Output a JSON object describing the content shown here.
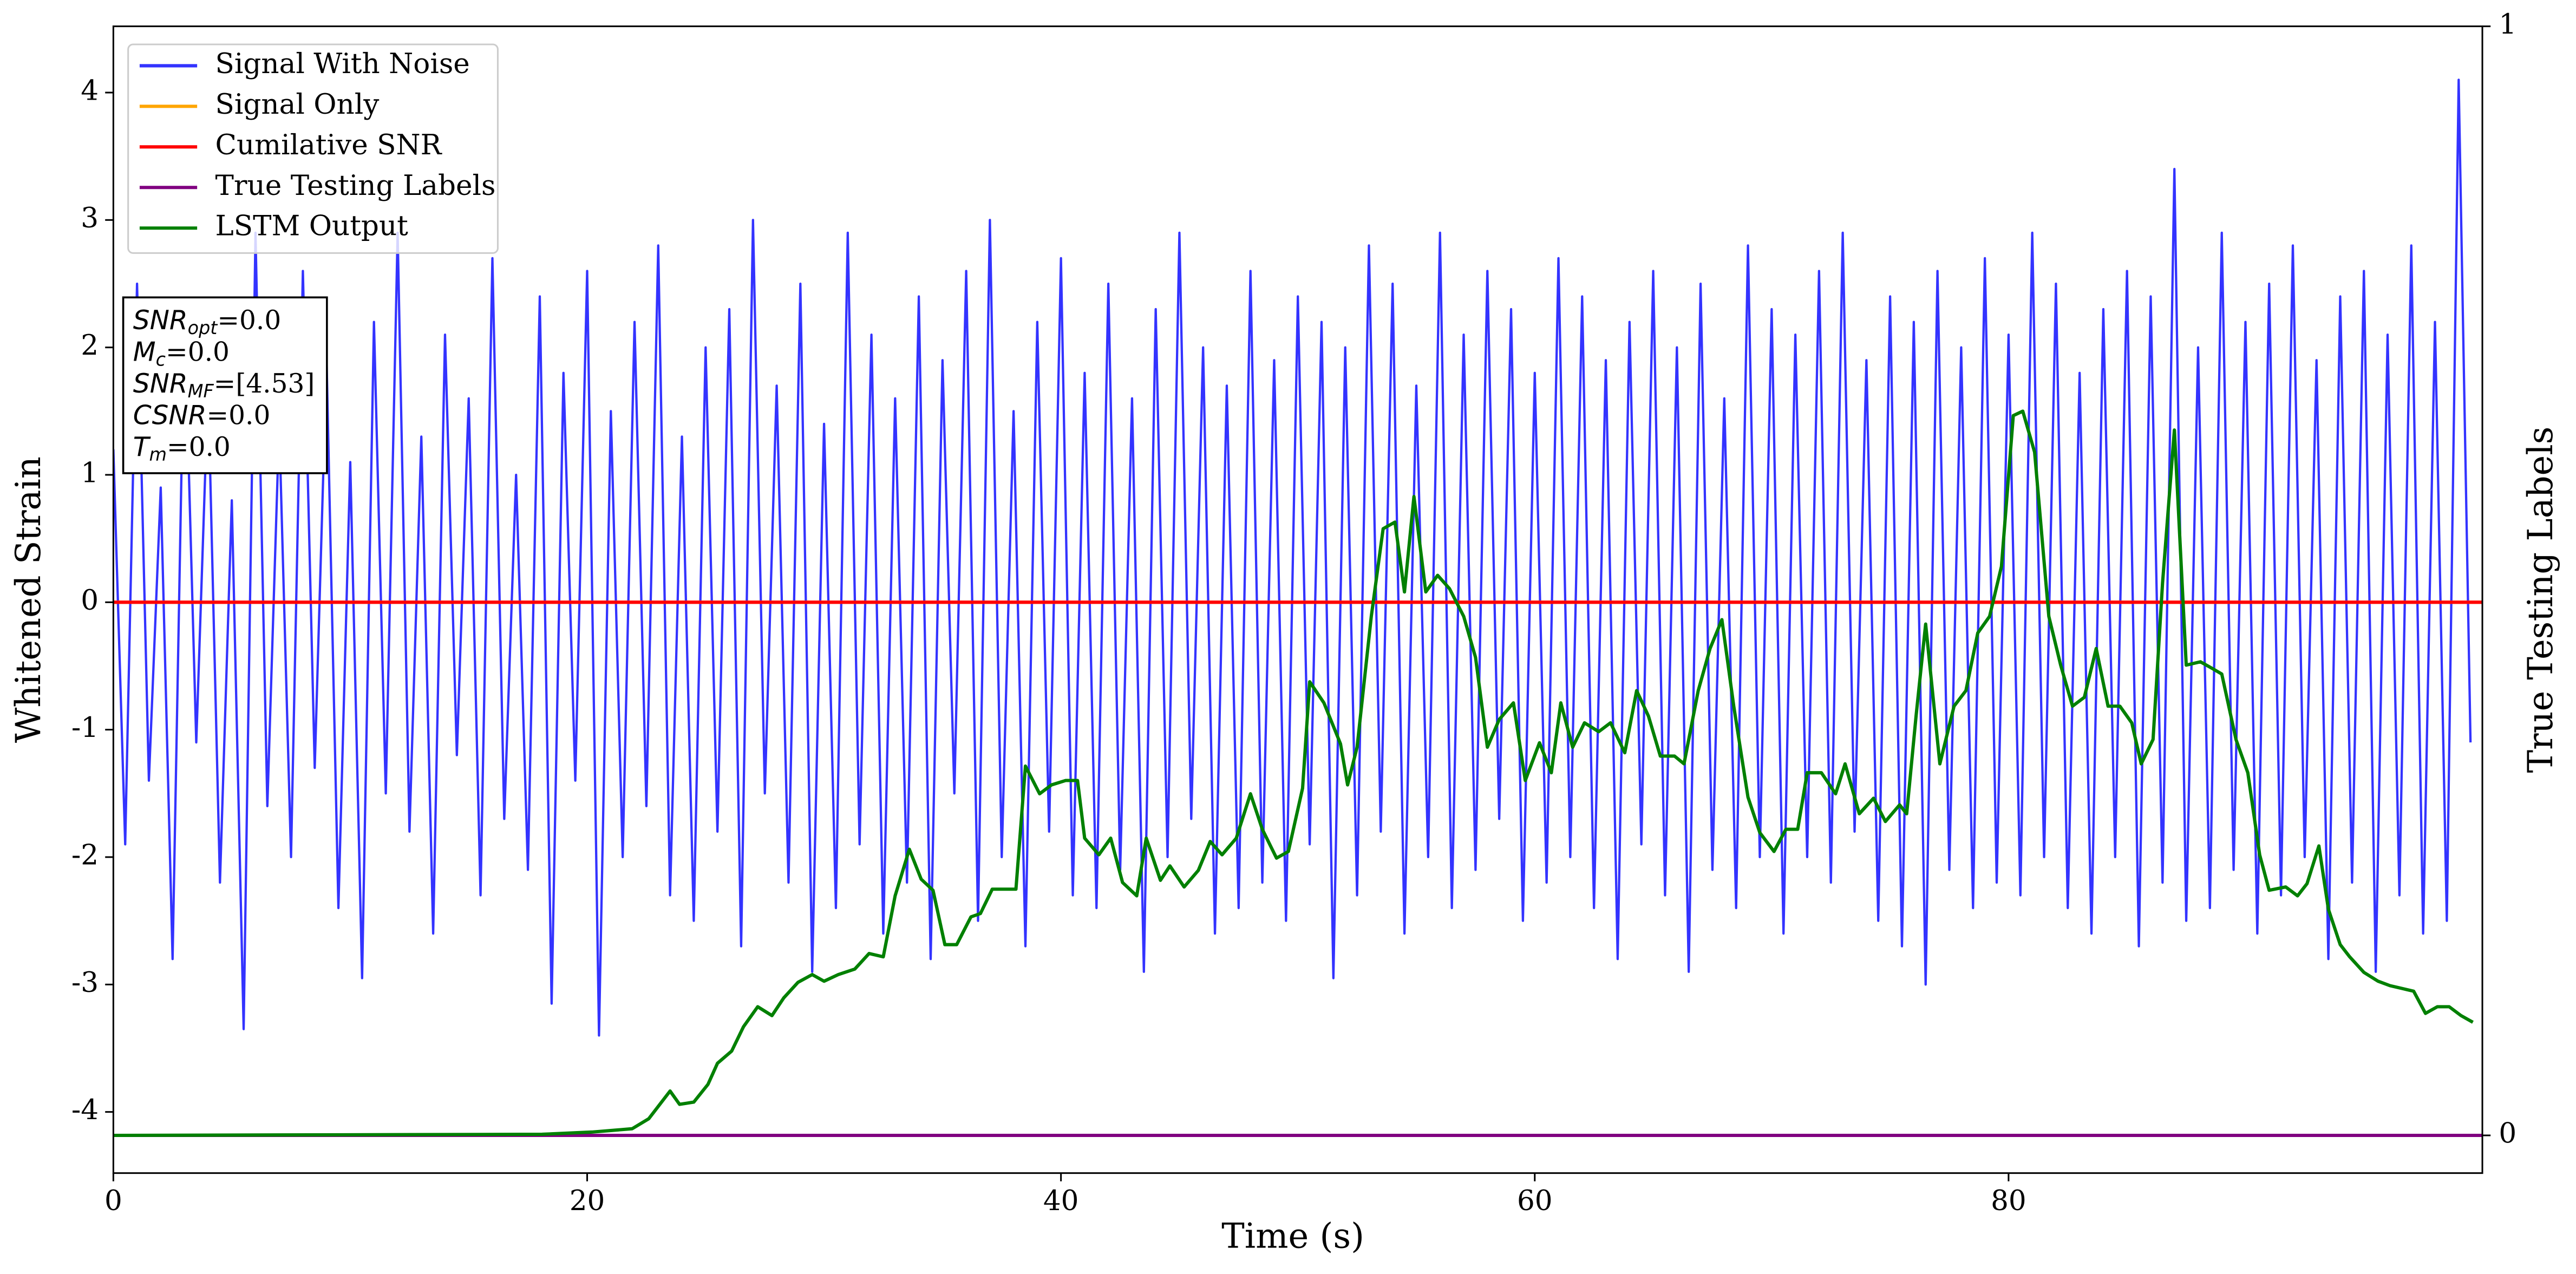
{
  "chart_data": {
    "type": "line",
    "xlabel": "Time (s)",
    "ylabel": "Whitened Strain",
    "y2label": "True Testing Labels",
    "xlim": [
      0,
      100
    ],
    "xticks": [
      0,
      20,
      40,
      60,
      80
    ],
    "ylim": [
      -4.48,
      4.52
    ],
    "yticks": [
      -4,
      -3,
      -2,
      -1,
      0,
      1,
      2,
      3,
      4
    ],
    "y2lim": [
      -0.034,
      1
    ],
    "y2ticks": [
      0,
      1
    ],
    "legend": "upper left",
    "annotations": [
      {
        "symbol": "SNR",
        "sub": "opt",
        "text": "=0.0"
      },
      {
        "symbol": "M",
        "sub": "c",
        "text": "=0.0"
      },
      {
        "symbol": "SNR",
        "sub": "MF",
        "text": "=[4.53]"
      },
      {
        "symbol": "CSNR",
        "text": "=0.0"
      },
      {
        "symbol": "T",
        "sub": "m",
        "text": "=0.0"
      }
    ],
    "series": [
      {
        "name": "Signal With Noise",
        "color": "#3333ff",
        "x": [
          0,
          0.5,
          1,
          1.5,
          2,
          2.5,
          3,
          3.5,
          4,
          4.5,
          5,
          5.5,
          6,
          6.5,
          7,
          7.5,
          8,
          8.5,
          9,
          9.5,
          10,
          10.5,
          11,
          11.5,
          12,
          12.5,
          13,
          13.5,
          14,
          14.5,
          15,
          15.5,
          16,
          16.5,
          17,
          17.5,
          18,
          18.5,
          19,
          19.5,
          20,
          20.5,
          21,
          21.5,
          22,
          22.5,
          23,
          23.5,
          24,
          24.5,
          25,
          25.5,
          26,
          26.5,
          27,
          27.5,
          28,
          28.5,
          29,
          29.5,
          30,
          30.5,
          31,
          31.5,
          32,
          32.5,
          33,
          33.5,
          34,
          34.5,
          35,
          35.5,
          36,
          36.5,
          37,
          37.5,
          38,
          38.5,
          39,
          39.5,
          40,
          40.5,
          41,
          41.5,
          42,
          42.5,
          43,
          43.5,
          44,
          44.5,
          45,
          45.5,
          46,
          46.5,
          47,
          47.5,
          48,
          48.5,
          49,
          49.5,
          50,
          50.5,
          51,
          51.5,
          52,
          52.5,
          53,
          53.5,
          54,
          54.5,
          55,
          55.5,
          56,
          56.5,
          57,
          57.5,
          58,
          58.5,
          59,
          59.5,
          60,
          60.5,
          61,
          61.5,
          62,
          62.5,
          63,
          63.5,
          64,
          64.5,
          65,
          65.5,
          66,
          66.5,
          67,
          67.5,
          68,
          68.5,
          69,
          69.5,
          70,
          70.5,
          71,
          71.5,
          72,
          72.5,
          73,
          73.5,
          74,
          74.5,
          75,
          75.5,
          76,
          76.5,
          77,
          77.5,
          78,
          78.5,
          79,
          79.5,
          80,
          80.5,
          81,
          81.5,
          82,
          82.5,
          83,
          83.5,
          84,
          84.5,
          85,
          85.5,
          86,
          86.5,
          87,
          87.5,
          88,
          88.5,
          89,
          89.5,
          90,
          90.5,
          91,
          91.5,
          92,
          92.5,
          93,
          93.5,
          94,
          94.5,
          95,
          95.5,
          96,
          96.5,
          97,
          97.5,
          98,
          98.5,
          99,
          99.5
        ],
        "values": [
          1.2,
          -1.9,
          2.5,
          -1.4,
          0.9,
          -2.8,
          2.3,
          -1.1,
          1.7,
          -2.2,
          0.8,
          -3.35,
          2.9,
          -1.6,
          1.4,
          -2.0,
          2.6,
          -1.3,
          1.9,
          -2.4,
          1.1,
          -2.95,
          2.2,
          -1.5,
          2.9,
          -1.8,
          1.3,
          -2.6,
          2.1,
          -1.2,
          1.6,
          -2.3,
          2.7,
          -1.7,
          1.0,
          -2.1,
          2.4,
          -3.15,
          1.8,
          -1.4,
          2.6,
          -3.4,
          1.5,
          -2.0,
          2.2,
          -1.6,
          2.8,
          -2.3,
          1.3,
          -2.5,
          2.0,
          -1.8,
          2.3,
          -2.7,
          3.0,
          -1.5,
          1.7,
          -2.2,
          2.5,
          -2.9,
          1.4,
          -2.4,
          2.9,
          -1.9,
          2.1,
          -2.6,
          1.6,
          -2.2,
          2.4,
          -2.8,
          1.9,
          -1.5,
          2.6,
          -2.5,
          3.0,
          -2.0,
          1.5,
          -2.7,
          2.2,
          -1.8,
          2.7,
          -2.3,
          1.8,
          -2.4,
          2.5,
          -2.1,
          1.6,
          -2.9,
          2.3,
          -2.0,
          2.9,
          -1.7,
          2.0,
          -2.6,
          1.7,
          -2.4,
          2.6,
          -2.2,
          1.9,
          -2.5,
          2.4,
          -1.9,
          2.2,
          -2.95,
          2.0,
          -2.3,
          2.8,
          -1.8,
          2.5,
          -2.6,
          1.7,
          -2.0,
          2.9,
          -2.4,
          2.1,
          -2.1,
          2.6,
          -1.7,
          2.3,
          -2.5,
          1.8,
          -2.2,
          2.7,
          -2.0,
          2.4,
          -2.4,
          1.9,
          -2.8,
          2.2,
          -1.9,
          2.6,
          -2.3,
          2.0,
          -2.9,
          2.5,
          -2.1,
          1.6,
          -2.4,
          2.8,
          -2.0,
          2.3,
          -2.6,
          2.1,
          -2.0,
          2.6,
          -2.2,
          2.9,
          -1.8,
          1.9,
          -2.5,
          2.4,
          -2.7,
          2.2,
          -3.0,
          2.6,
          -2.1,
          2.0,
          -2.4,
          2.7,
          -2.2,
          2.1,
          -2.3,
          2.9,
          -2.0,
          2.5,
          -2.4,
          1.8,
          -2.6,
          2.3,
          -2.0,
          2.6,
          -2.7,
          2.4,
          -2.2,
          3.4,
          -2.5,
          2.0,
          -2.4,
          2.9,
          -2.1,
          2.2,
          -2.6,
          2.5,
          -2.3,
          2.8,
          -2.0,
          1.9,
          -2.8,
          2.4,
          -2.2,
          2.6,
          -2.9,
          2.1,
          -2.3,
          2.8,
          -2.6,
          2.2,
          -2.5,
          4.1,
          -1.1
        ]
      },
      {
        "name": "Signal Only",
        "color": "#ffa500",
        "x": [
          0,
          100
        ],
        "values": [
          0,
          0
        ]
      },
      {
        "name": "Cumilative SNR",
        "color": "#ff0000",
        "x": [
          0,
          100
        ],
        "values": [
          0,
          0
        ]
      },
      {
        "name": "True Testing Labels",
        "color": "#800080",
        "axis": "y2",
        "x": [
          0,
          100
        ],
        "values": [
          0,
          0
        ]
      },
      {
        "name": "LSTM Output",
        "color": "#008000",
        "axis": "y2",
        "x": [
          0,
          18.1,
          20.2,
          21.9,
          22.6,
          23.5,
          23.9,
          24.5,
          25.1,
          25.5,
          26.1,
          26.6,
          27.2,
          27.8,
          28.3,
          28.9,
          29.5,
          30.0,
          30.6,
          31.3,
          31.9,
          32.5,
          33.0,
          33.6,
          34.1,
          34.6,
          35.1,
          35.6,
          36.2,
          36.6,
          37.1,
          37.7,
          38.1,
          38.5,
          39.1,
          39.6,
          40.2,
          40.7,
          41.0,
          41.6,
          42.1,
          42.6,
          43.2,
          43.6,
          44.2,
          44.6,
          45.2,
          45.8,
          46.3,
          46.8,
          47.4,
          48.0,
          48.5,
          49.1,
          49.6,
          50.2,
          50.5,
          51.1,
          51.8,
          52.1,
          52.5,
          53.1,
          53.6,
          54.1,
          54.5,
          54.9,
          55.4,
          55.9,
          56.4,
          57.0,
          57.5,
          58.0,
          58.5,
          59.1,
          59.6,
          60.2,
          60.7,
          61.1,
          61.6,
          62.1,
          62.7,
          63.2,
          63.8,
          64.3,
          64.8,
          65.3,
          65.9,
          66.3,
          66.9,
          67.4,
          67.9,
          68.4,
          69.0,
          69.5,
          70.1,
          70.6,
          71.1,
          71.5,
          72.1,
          72.7,
          73.1,
          73.7,
          74.3,
          74.8,
          75.4,
          75.7,
          76.1,
          76.5,
          77.1,
          77.7,
          78.2,
          78.7,
          79.2,
          79.7,
          80.2,
          80.6,
          81.1,
          81.7,
          82.2,
          82.7,
          83.2,
          83.7,
          84.2,
          84.7,
          85.2,
          85.6,
          86.1,
          86.5,
          87.0,
          87.5,
          88.1,
          88.6,
          89.0,
          89.6,
          90.1,
          90.6,
          91.0,
          91.7,
          92.2,
          92.6,
          93.1,
          93.5,
          94.0,
          94.4,
          95.0,
          95.6,
          96.1,
          96.7,
          97.1,
          97.6,
          98.1,
          98.6,
          99.1,
          99.6
        ],
        "values": [
          0,
          0.001,
          0.003,
          0.006,
          0.015,
          0.04,
          0.028,
          0.03,
          0.046,
          0.065,
          0.076,
          0.098,
          0.116,
          0.108,
          0.124,
          0.138,
          0.145,
          0.139,
          0.145,
          0.15,
          0.164,
          0.161,
          0.216,
          0.258,
          0.231,
          0.221,
          0.172,
          0.172,
          0.197,
          0.2,
          0.222,
          0.222,
          0.222,
          0.333,
          0.308,
          0.316,
          0.32,
          0.32,
          0.268,
          0.253,
          0.268,
          0.228,
          0.216,
          0.268,
          0.23,
          0.243,
          0.224,
          0.239,
          0.265,
          0.253,
          0.268,
          0.308,
          0.276,
          0.25,
          0.256,
          0.313,
          0.409,
          0.39,
          0.353,
          0.316,
          0.35,
          0.468,
          0.547,
          0.553,
          0.49,
          0.576,
          0.49,
          0.505,
          0.493,
          0.468,
          0.431,
          0.35,
          0.375,
          0.39,
          0.32,
          0.354,
          0.327,
          0.39,
          0.35,
          0.372,
          0.364,
          0.372,
          0.345,
          0.401,
          0.378,
          0.342,
          0.342,
          0.335,
          0.401,
          0.439,
          0.465,
          0.387,
          0.305,
          0.273,
          0.256,
          0.276,
          0.276,
          0.327,
          0.327,
          0.308,
          0.335,
          0.29,
          0.304,
          0.283,
          0.298,
          0.29,
          0.379,
          0.461,
          0.335,
          0.387,
          0.401,
          0.453,
          0.468,
          0.513,
          0.649,
          0.653,
          0.616,
          0.468,
          0.424,
          0.387,
          0.395,
          0.439,
          0.387,
          0.387,
          0.372,
          0.335,
          0.357,
          0.498,
          0.636,
          0.424,
          0.427,
          0.421,
          0.416,
          0.357,
          0.327,
          0.253,
          0.221,
          0.224,
          0.216,
          0.227,
          0.261,
          0.204,
          0.172,
          0.161,
          0.147,
          0.139,
          0.135,
          0.132,
          0.13,
          0.11,
          0.116,
          0.116,
          0.108,
          0.102
        ]
      }
    ]
  }
}
